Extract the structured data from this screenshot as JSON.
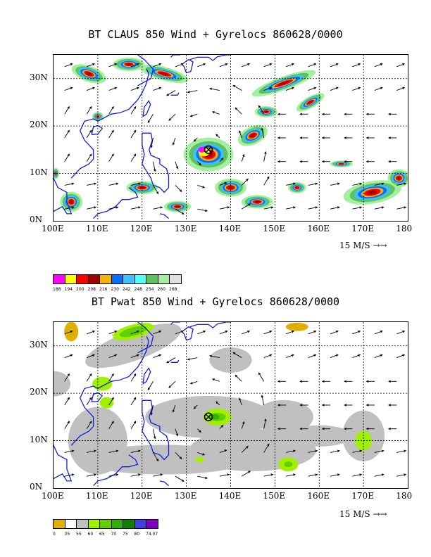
{
  "panels": [
    {
      "title": "BT CLAUS 850 Wind + Gyrelocs 860628/0000",
      "xticks": [
        "100E",
        "110E",
        "120E",
        "130E",
        "140E",
        "150E",
        "160E",
        "170E",
        "180"
      ],
      "yticks": [
        "0N",
        "10N",
        "20N",
        "30N"
      ],
      "ref_vector_label": "15 M/S",
      "legend": {
        "colors": [
          "#ff00ff",
          "#ffff00",
          "#ff0000",
          "#a00000",
          "#f0b400",
          "#0070ff",
          "#40c0ff",
          "#50ffff",
          "#60c060",
          "#a0f0a0",
          "#e0e0e0"
        ],
        "labels": [
          "188",
          "194",
          "200",
          "208",
          "216",
          "230",
          "242",
          "248",
          "254",
          "260",
          "268"
        ]
      },
      "gyre_location": {
        "lon": 135,
        "lat": 15
      }
    },
    {
      "title": "BT Pwat 850 Wind + Gyrelocs 860628/0000",
      "xticks": [
        "100E",
        "110E",
        "120E",
        "130E",
        "140E",
        "150E",
        "160E",
        "170E",
        "180"
      ],
      "yticks": [
        "0N",
        "10N",
        "20N",
        "30N"
      ],
      "ref_vector_label": "15 M/S",
      "legend": {
        "colors": [
          "#e0b000",
          "#ffffff",
          "#c0c0c0",
          "#a0f000",
          "#60d000",
          "#30b000",
          "#108000",
          "#4040e0",
          "#8000c0"
        ],
        "labels": [
          "0",
          "35",
          "55",
          "60",
          "65",
          "70",
          "75",
          "80",
          "74.07"
        ]
      },
      "gyre_location": {
        "lon": 135,
        "lat": 15
      }
    }
  ]
}
